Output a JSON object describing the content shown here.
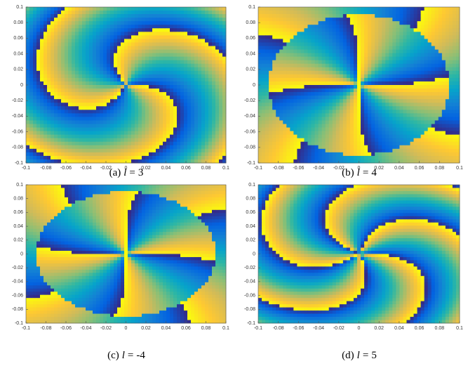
{
  "chart_data": [
    {
      "type": "heatmap",
      "caption": [
        "(a)",
        "l",
        "="
      ],
      "l": 3,
      "xlim": [
        -0.1,
        0.1
      ],
      "ylim": [
        -0.1,
        0.1
      ],
      "xticks": [
        -0.1,
        -0.08,
        -0.06,
        -0.04,
        -0.02,
        0,
        0.02,
        0.04,
        0.06,
        0.08,
        0.1
      ],
      "yticks": [
        -0.1,
        -0.08,
        -0.06,
        -0.04,
        -0.02,
        0,
        0.02,
        0.04,
        0.06,
        0.08,
        0.1
      ]
    },
    {
      "type": "heatmap",
      "caption": [
        "(b)",
        "l",
        "="
      ],
      "l": 4,
      "xlim": [
        -0.1,
        0.1
      ],
      "ylim": [
        -0.1,
        0.1
      ],
      "xticks": [
        -0.1,
        -0.08,
        -0.06,
        -0.04,
        -0.02,
        0,
        0.02,
        0.04,
        0.06,
        0.08,
        0.1
      ],
      "yticks": [
        -0.1,
        -0.08,
        -0.06,
        -0.04,
        -0.02,
        0,
        0.02,
        0.04,
        0.06,
        0.08,
        0.1
      ]
    },
    {
      "type": "heatmap",
      "caption": [
        "(c)",
        "l",
        "="
      ],
      "l": -4,
      "xlim": [
        -0.1,
        0.1
      ],
      "ylim": [
        -0.1,
        0.1
      ],
      "xticks": [
        -0.1,
        -0.08,
        -0.06,
        -0.04,
        -0.02,
        0,
        0.02,
        0.04,
        0.06,
        0.08,
        0.1
      ],
      "yticks": [
        -0.1,
        -0.08,
        -0.06,
        -0.04,
        -0.02,
        0,
        0.02,
        0.04,
        0.06,
        0.08,
        0.1
      ]
    },
    {
      "type": "heatmap",
      "caption": [
        "(d)",
        "l",
        "="
      ],
      "l": 5,
      "xlim": [
        -0.1,
        0.1
      ],
      "ylim": [
        -0.1,
        0.1
      ],
      "xticks": [
        -0.1,
        -0.08,
        -0.06,
        -0.04,
        -0.02,
        0,
        0.02,
        0.04,
        0.06,
        0.08,
        0.1
      ],
      "yticks": [
        -0.1,
        -0.08,
        -0.06,
        -0.04,
        -0.02,
        0,
        0.02,
        0.04,
        0.06,
        0.08,
        0.1
      ]
    }
  ]
}
